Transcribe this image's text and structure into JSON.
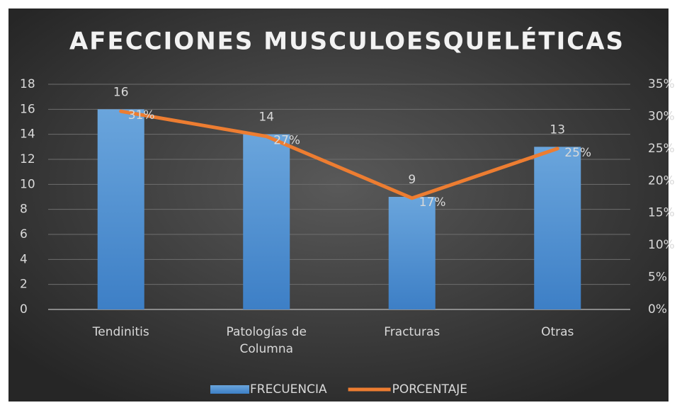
{
  "chart_data": {
    "type": "bar_line",
    "title": "AFECCIONES MUSCULOESQUELÉTICAS",
    "categories": [
      "Tendinitis",
      "Patologías de Columna",
      "Fracturas",
      "Otras"
    ],
    "series": [
      {
        "name": "FRECUENCIA",
        "type": "bar",
        "color": "#5b9bd5",
        "values": [
          16,
          14,
          9,
          13
        ]
      },
      {
        "name": "PORCENTAJE",
        "type": "line",
        "axis": "y2",
        "color": "#ed7d31",
        "values": [
          30.8,
          26.9,
          17.3,
          25
        ],
        "value_labels": [
          "31%",
          "27%",
          "17%",
          "25%"
        ]
      }
    ],
    "ylim": [
      0,
      18
    ],
    "yticks": [
      0,
      2,
      4,
      6,
      8,
      10,
      12,
      14,
      16,
      18
    ],
    "y2lim": [
      0,
      35
    ],
    "y2ticks": [
      {
        "value": 0,
        "label": "0%"
      },
      {
        "value": 5,
        "label": "5%"
      },
      {
        "value": 10,
        "label": "10%"
      },
      {
        "value": 15,
        "label": "15%"
      },
      {
        "value": 20,
        "label": "20%"
      },
      {
        "value": 25,
        "label": "25%"
      },
      {
        "value": 30,
        "label": "30%"
      },
      {
        "value": 35,
        "label": "35%"
      }
    ],
    "grid": true,
    "legend": "bottom"
  }
}
